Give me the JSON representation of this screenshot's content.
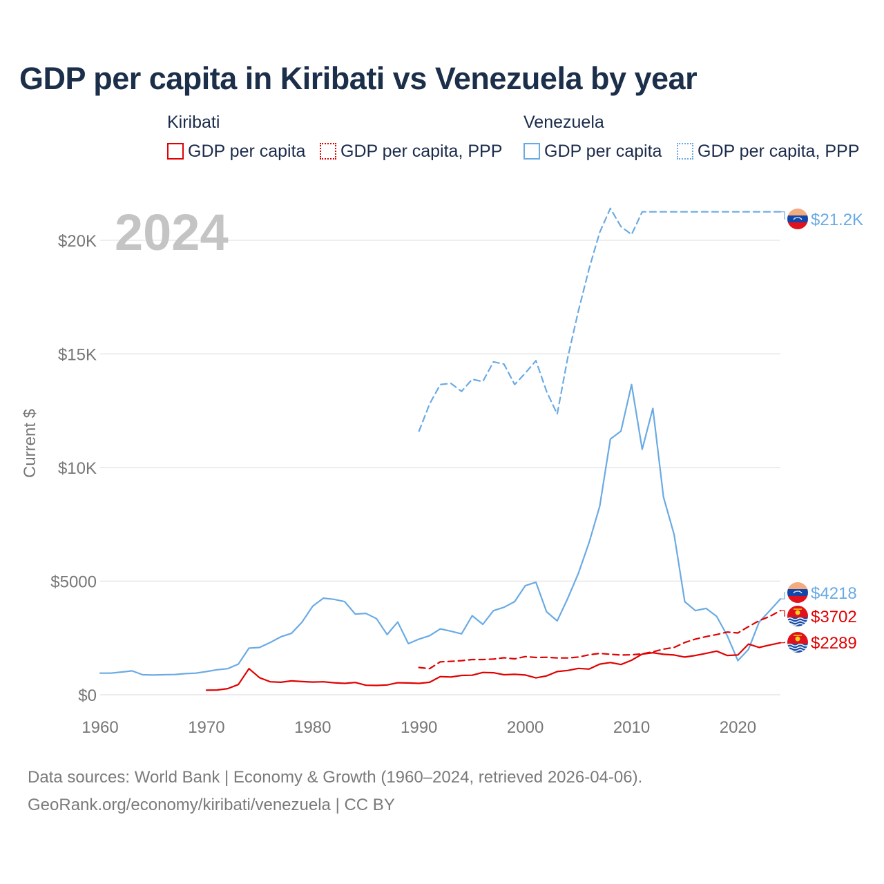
{
  "title": "GDP per capita in Kiribati vs Venezuela by year",
  "legend": {
    "groups": [
      {
        "country": "Kiribati",
        "color": "#e00000",
        "items": [
          {
            "label": "GDP per capita",
            "style": "solid"
          },
          {
            "label": "GDP per capita, PPP",
            "style": "dotted"
          }
        ]
      },
      {
        "country": "Venezuela",
        "color": "#6aaae4",
        "items": [
          {
            "label": "GDP per capita",
            "style": "solid"
          },
          {
            "label": "GDP per capita, PPP",
            "style": "dotted"
          }
        ]
      }
    ]
  },
  "year_watermark": "2024",
  "end_labels": [
    {
      "text": "$21.2K",
      "color": "#6aaae4",
      "flag": "venezuela"
    },
    {
      "text": "$4218",
      "color": "#6aaae4",
      "flag": "venezuela"
    },
    {
      "text": "$3702",
      "color": "#e00000",
      "flag": "kiribati"
    },
    {
      "text": "$2289",
      "color": "#e00000",
      "flag": "kiribati"
    }
  ],
  "source_lines": [
    "Data sources: World Bank | Economy & Growth (1960–2024, retrieved 2026-04-06).",
    "GeoRank.org/economy/kiribati/venezuela | CC BY"
  ],
  "chart_data": {
    "type": "line",
    "title": "GDP per capita in Kiribati vs Venezuela by year",
    "xlabel": "",
    "ylabel": "Current $",
    "xlim": [
      1960,
      2024
    ],
    "ylim": [
      0,
      22000
    ],
    "x_ticks": [
      1960,
      1970,
      1980,
      1990,
      2000,
      2010,
      2020
    ],
    "y_ticks": [
      0,
      5000,
      10000,
      15000,
      20000
    ],
    "y_tick_labels": [
      "$0",
      "$5000",
      "$10K",
      "$15K",
      "$20K"
    ],
    "grid": true,
    "series": [
      {
        "name": "Venezuela GDP per capita, PPP",
        "country": "Venezuela",
        "color": "#6aaae4",
        "dash": "dashed",
        "x_start": 1990,
        "values": [
          11600,
          12800,
          13650,
          13700,
          13350,
          13880,
          13780,
          14650,
          14550,
          13650,
          14150,
          14700,
          13350,
          12350,
          14850,
          16900,
          18750,
          20350,
          21400,
          20600,
          20250,
          21250,
          21250,
          21250,
          21250,
          21250,
          21250,
          21250,
          21250,
          21250,
          21250,
          21250,
          21250,
          21250,
          21250
        ],
        "end_label": "$21.2K"
      },
      {
        "name": "Venezuela GDP per capita",
        "country": "Venezuela",
        "color": "#6aaae4",
        "dash": "solid",
        "x_start": 1960,
        "values": [
          950,
          950,
          1000,
          1050,
          880,
          870,
          880,
          890,
          930,
          950,
          1020,
          1100,
          1150,
          1350,
          2050,
          2080,
          2300,
          2550,
          2700,
          3200,
          3900,
          4250,
          4200,
          4100,
          3550,
          3580,
          3350,
          2650,
          3200,
          2250,
          2450,
          2600,
          2900,
          2800,
          2680,
          3480,
          3100,
          3700,
          3850,
          4100,
          4800,
          4950,
          3650,
          3250,
          4250,
          5350,
          6700,
          8300,
          11250,
          11600,
          13650,
          10800,
          12600,
          8700,
          7050,
          4100,
          3700,
          3800,
          3450,
          2600,
          1500,
          2000,
          3200,
          3700,
          4218
        ],
        "end_label": "$4218"
      },
      {
        "name": "Kiribati GDP per capita, PPP",
        "country": "Kiribati",
        "color": "#e00000",
        "dash": "dashed",
        "x_start": 1990,
        "values": [
          1200,
          1150,
          1450,
          1470,
          1500,
          1550,
          1550,
          1570,
          1630,
          1580,
          1680,
          1640,
          1650,
          1620,
          1620,
          1660,
          1760,
          1820,
          1780,
          1750,
          1760,
          1800,
          1890,
          2010,
          2080,
          2300,
          2450,
          2560,
          2650,
          2760,
          2720,
          3000,
          3260,
          3450,
          3702
        ],
        "end_label": "$3702"
      },
      {
        "name": "Kiribati GDP per capita",
        "country": "Kiribati",
        "color": "#e00000",
        "dash": "solid",
        "x_start": 1970,
        "values": [
          200,
          210,
          270,
          450,
          1150,
          750,
          570,
          550,
          610,
          580,
          560,
          570,
          530,
          500,
          540,
          420,
          410,
          430,
          530,
          520,
          500,
          550,
          800,
          780,
          850,
          860,
          980,
          970,
          880,
          900,
          870,
          740,
          830,
          1020,
          1070,
          1160,
          1130,
          1350,
          1420,
          1330,
          1520,
          1790,
          1850,
          1780,
          1750,
          1660,
          1730,
          1820,
          1920,
          1730,
          1750,
          2230,
          2080,
          2190,
          2289
        ],
        "end_label": "$2289"
      }
    ]
  }
}
